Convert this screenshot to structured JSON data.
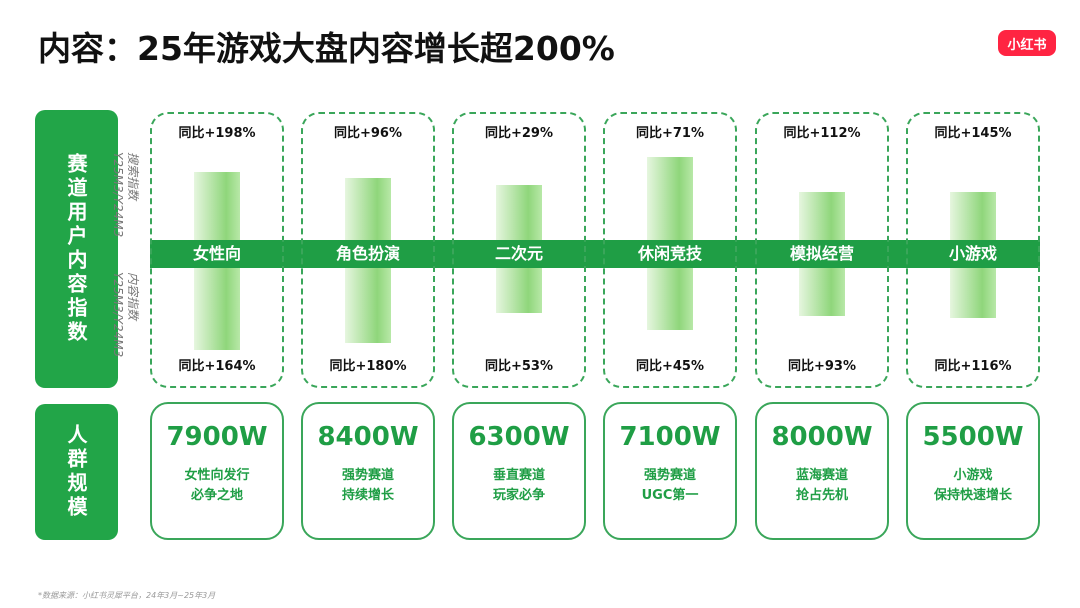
{
  "title": "内容：25年游戏大盘内容增长超200%",
  "logo": "小红书",
  "side_labels": [
    "赛道用户内容指数",
    "人群规模"
  ],
  "axis_notes": {
    "top": [
      "搜索指数",
      "Y25M3/Y24M3"
    ],
    "bottom": [
      "内容指数",
      "Y25M3/Y24M3"
    ]
  },
  "columns": [
    {
      "name": "女性向",
      "search_growth": "同比+198%",
      "content_growth": "同比+164%",
      "audience": "7900W",
      "desc": [
        "女性向发行",
        "必争之地"
      ]
    },
    {
      "name": "角色扮演",
      "search_growth": "同比+96%",
      "content_growth": "同比+180%",
      "audience": "8400W",
      "desc": [
        "强势赛道",
        "持续增长"
      ]
    },
    {
      "name": "二次元",
      "search_growth": "同比+29%",
      "content_growth": "同比+53%",
      "audience": "6300W",
      "desc": [
        "垂直赛道",
        "玩家必争"
      ]
    },
    {
      "name": "休闲竞技",
      "search_growth": "同比+71%",
      "content_growth": "同比+45%",
      "audience": "7100W",
      "desc": [
        "强势赛道",
        "UGC第一"
      ]
    },
    {
      "name": "模拟经营",
      "search_growth": "同比+112%",
      "content_growth": "同比+93%",
      "audience": "8000W",
      "desc": [
        "蓝海赛道",
        "抢占先机"
      ]
    },
    {
      "name": "小游戏",
      "search_growth": "同比+145%",
      "content_growth": "同比+116%",
      "audience": "5500W",
      "desc": [
        "小游戏",
        "保持快速增长"
      ]
    }
  ],
  "footnote": "*数据来源：小红书灵犀平台，24年3月~25年3月"
}
